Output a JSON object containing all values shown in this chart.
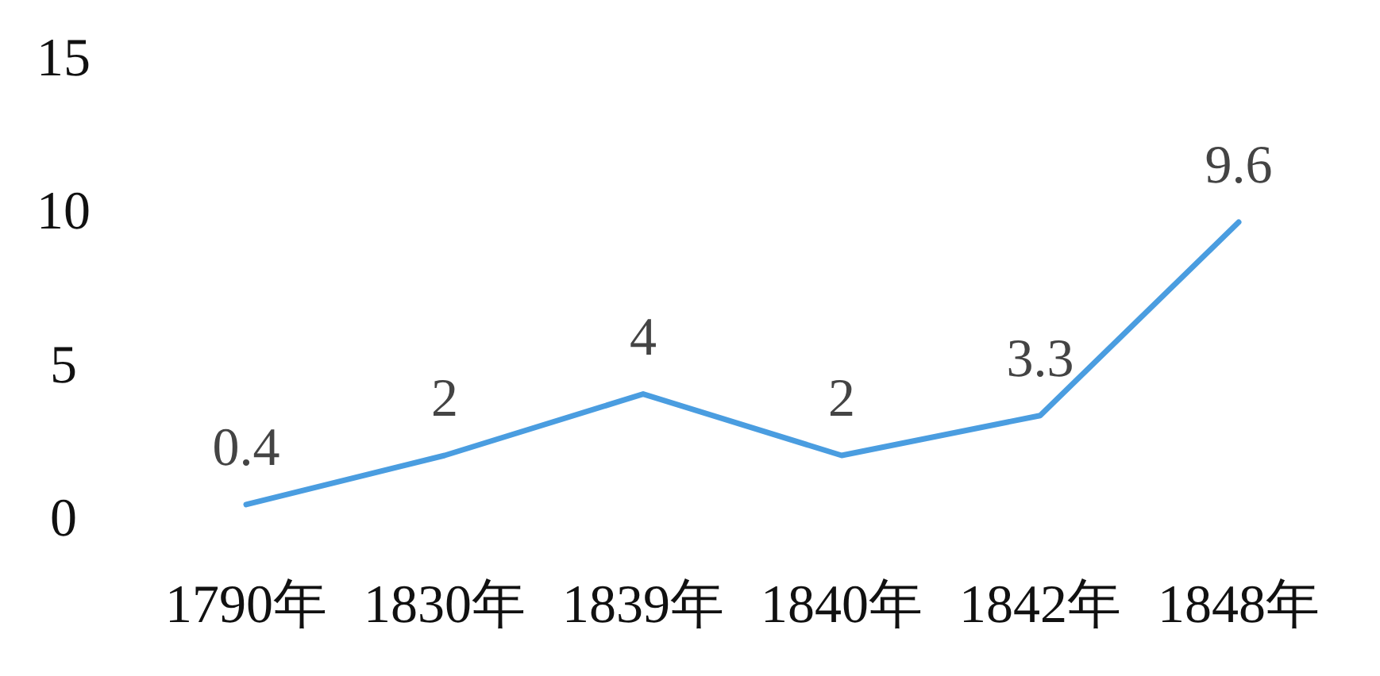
{
  "chart_data": {
    "type": "line",
    "categories": [
      "1790年",
      "1830年",
      "1839年",
      "1840年",
      "1842年",
      "1848年"
    ],
    "series": [
      {
        "color": "#4a9de0",
        "values": [
          0.4,
          2,
          4,
          2,
          3.3,
          9.6
        ]
      }
    ],
    "ylim": [
      0,
      15
    ],
    "yticks": [
      0,
      5,
      10,
      15
    ],
    "grid": false,
    "data_labels": true,
    "marker": "none",
    "line_style": "solid"
  }
}
